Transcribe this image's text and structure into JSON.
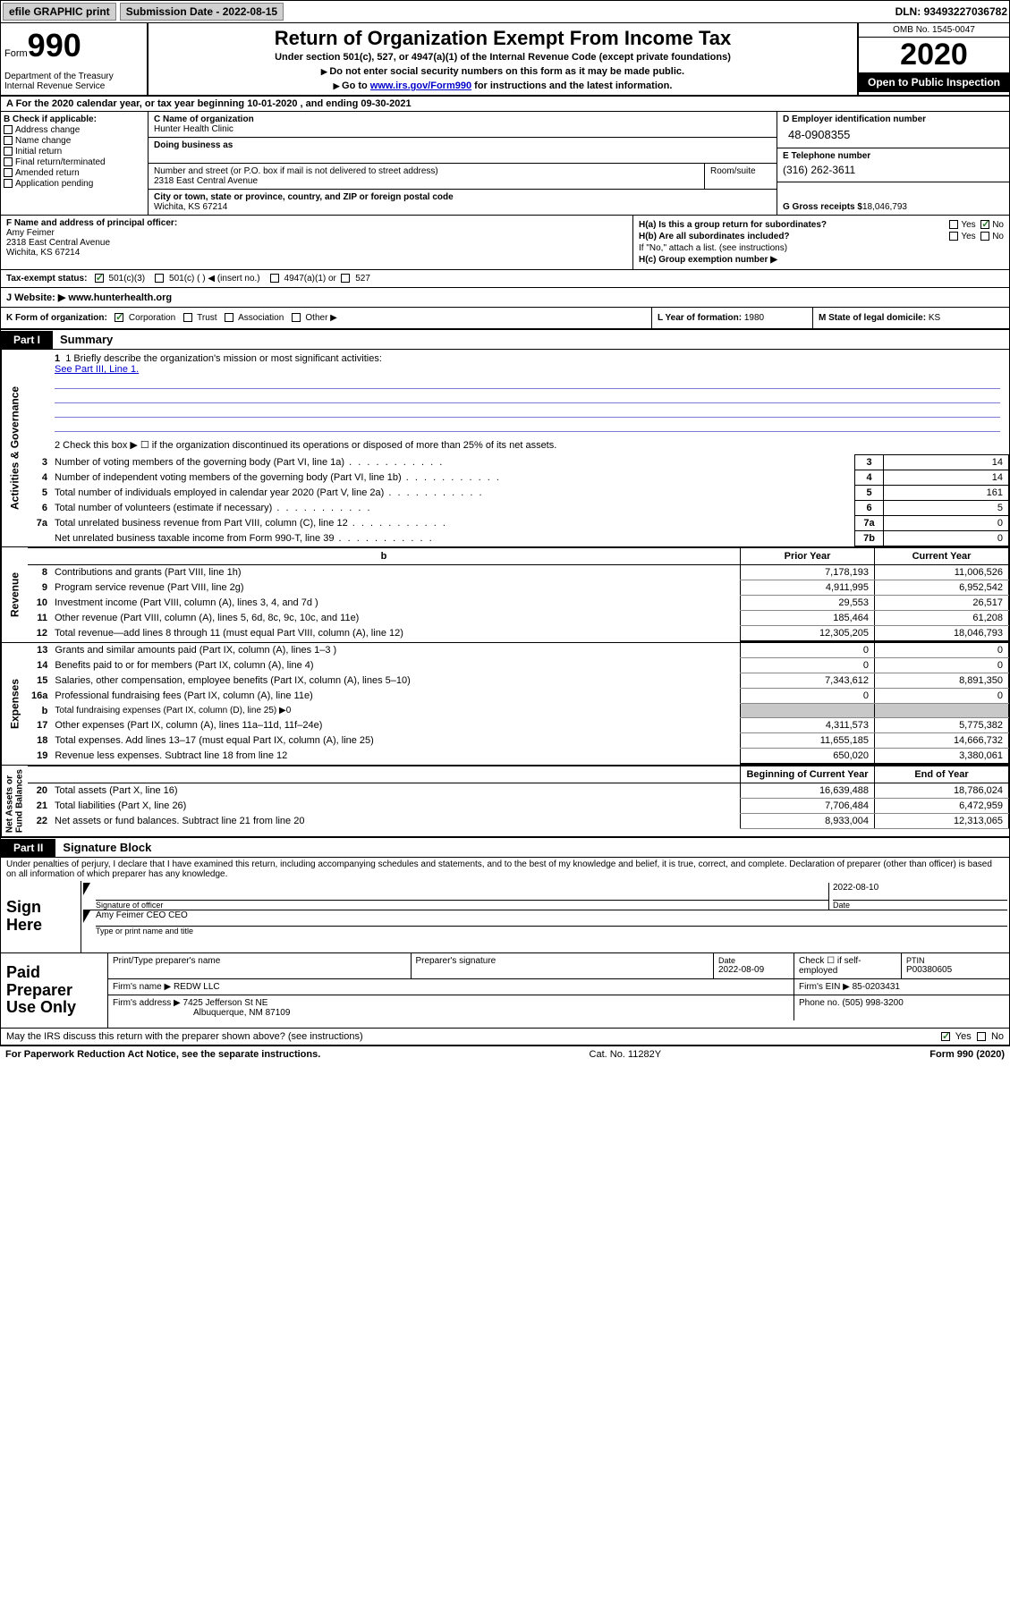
{
  "topbar": {
    "efile": "efile GRAPHIC print",
    "subdate_label": "Submission Date - ",
    "subdate": "2022-08-15",
    "dln_label": "DLN: ",
    "dln": "93493227036782"
  },
  "header": {
    "form_word": "Form",
    "form_num": "990",
    "dept": "Department of the Treasury\nInternal Revenue Service",
    "title": "Return of Organization Exempt From Income Tax",
    "sub": "Under section 501(c), 527, or 4947(a)(1) of the Internal Revenue Code (except private foundations)",
    "note1": "Do not enter social security numbers on this form as it may be made public.",
    "note2_pre": "Go to ",
    "note2_link": "www.irs.gov/Form990",
    "note2_post": " for instructions and the latest information.",
    "omb": "OMB No. 1545-0047",
    "year": "2020",
    "open": "Open to Public Inspection"
  },
  "rowA": "A For the 2020 calendar year, or tax year beginning 10-01-2020   , and ending 09-30-2021",
  "colB": {
    "hdr": "B Check if applicable:",
    "items": [
      "Address change",
      "Name change",
      "Initial return",
      "Final return/terminated",
      "Amended return",
      "Application pending"
    ]
  },
  "colC": {
    "name_lbl": "C Name of organization",
    "name": "Hunter Health Clinic",
    "dba_lbl": "Doing business as",
    "addr_lbl": "Number and street (or P.O. box if mail is not delivered to street address)",
    "addr": "2318 East Central Avenue",
    "room_lbl": "Room/suite",
    "city_lbl": "City or town, state or province, country, and ZIP or foreign postal code",
    "city": "Wichita, KS  67214"
  },
  "colD": {
    "ein_lbl": "D Employer identification number",
    "ein": "48-0908355",
    "tel_lbl": "E Telephone number",
    "tel": "(316) 262-3611",
    "gross_lbl": "G Gross receipts $ ",
    "gross": "18,046,793"
  },
  "colF": {
    "lbl": "F Name and address of principal officer:",
    "name": "Amy Feimer",
    "addr1": "2318 East Central Avenue",
    "addr2": "Wichita, KS  67214"
  },
  "colH": {
    "a": "H(a)  Is this a group return for subordinates?",
    "b": "H(b)  Are all subordinates included?",
    "b_note": "If \"No,\" attach a list. (see instructions)",
    "c": "H(c)  Group exemption number ▶",
    "yes": "Yes",
    "no": "No"
  },
  "rowI": {
    "lbl": "Tax-exempt status:",
    "o1": "501(c)(3)",
    "o2": "501(c) (  ) ◀ (insert no.)",
    "o3": "4947(a)(1) or",
    "o4": "527"
  },
  "rowJ": {
    "lbl": "J  Website: ▶ ",
    "val": "www.hunterhealth.org"
  },
  "rowK": {
    "lbl": "K Form of organization:",
    "corp": "Corporation",
    "trust": "Trust",
    "assoc": "Association",
    "other": "Other ▶"
  },
  "rowL": {
    "lbl": "L Year of formation: ",
    "val": "1980"
  },
  "rowM": {
    "lbl": "M State of legal domicile: ",
    "val": "KS"
  },
  "parts": {
    "p1": "Part I",
    "p1t": "Summary",
    "p2": "Part II",
    "p2t": "Signature Block"
  },
  "vsides": {
    "gov": "Activities & Governance",
    "rev": "Revenue",
    "exp": "Expenses",
    "net": "Net Assets or\nFund Balances"
  },
  "summary": {
    "q1": "1   Briefly describe the organization's mission or most significant activities:",
    "q1_link": "See Part III, Line 1.",
    "q2": "2   Check this box ▶ ☐  if the organization discontinued its operations or disposed of more than 25% of its net assets.",
    "rows_gov": [
      {
        "n": "3",
        "d": "Number of voting members of the governing body (Part VI, line 1a)",
        "box": "3",
        "v": "14"
      },
      {
        "n": "4",
        "d": "Number of independent voting members of the governing body (Part VI, line 1b)",
        "box": "4",
        "v": "14"
      },
      {
        "n": "5",
        "d": "Total number of individuals employed in calendar year 2020 (Part V, line 2a)",
        "box": "5",
        "v": "161"
      },
      {
        "n": "6",
        "d": "Total number of volunteers (estimate if necessary)",
        "box": "6",
        "v": "5"
      },
      {
        "n": "7a",
        "d": "Total unrelated business revenue from Part VIII, column (C), line 12",
        "box": "7a",
        "v": "0"
      },
      {
        "n": "",
        "d": "Net unrelated business taxable income from Form 990-T, line 39",
        "box": "7b",
        "v": "0"
      }
    ],
    "col_hdr_b": "b",
    "hdr_prior": "Prior Year",
    "hdr_curr": "Current Year",
    "rows_rev": [
      {
        "n": "8",
        "d": "Contributions and grants (Part VIII, line 1h)",
        "p": "7,178,193",
        "c": "11,006,526"
      },
      {
        "n": "9",
        "d": "Program service revenue (Part VIII, line 2g)",
        "p": "4,911,995",
        "c": "6,952,542"
      },
      {
        "n": "10",
        "d": "Investment income (Part VIII, column (A), lines 3, 4, and 7d )",
        "p": "29,553",
        "c": "26,517"
      },
      {
        "n": "11",
        "d": "Other revenue (Part VIII, column (A), lines 5, 6d, 8c, 9c, 10c, and 11e)",
        "p": "185,464",
        "c": "61,208"
      },
      {
        "n": "12",
        "d": "Total revenue—add lines 8 through 11 (must equal Part VIII, column (A), line 12)",
        "p": "12,305,205",
        "c": "18,046,793"
      }
    ],
    "rows_exp": [
      {
        "n": "13",
        "d": "Grants and similar amounts paid (Part IX, column (A), lines 1–3 )",
        "p": "0",
        "c": "0"
      },
      {
        "n": "14",
        "d": "Benefits paid to or for members (Part IX, column (A), line 4)",
        "p": "0",
        "c": "0"
      },
      {
        "n": "15",
        "d": "Salaries, other compensation, employee benefits (Part IX, column (A), lines 5–10)",
        "p": "7,343,612",
        "c": "8,891,350"
      },
      {
        "n": "16a",
        "d": "Professional fundraising fees (Part IX, column (A), line 11e)",
        "p": "0",
        "c": "0"
      },
      {
        "n": "b",
        "d": "Total fundraising expenses (Part IX, column (D), line 25) ▶0",
        "p": "grey",
        "c": "grey"
      },
      {
        "n": "17",
        "d": "Other expenses (Part IX, column (A), lines 11a–11d, 11f–24e)",
        "p": "4,311,573",
        "c": "5,775,382"
      },
      {
        "n": "18",
        "d": "Total expenses. Add lines 13–17 (must equal Part IX, column (A), line 25)",
        "p": "11,655,185",
        "c": "14,666,732"
      },
      {
        "n": "19",
        "d": "Revenue less expenses. Subtract line 18 from line 12",
        "p": "650,020",
        "c": "3,380,061"
      }
    ],
    "hdr_beg": "Beginning of Current Year",
    "hdr_end": "End of Year",
    "rows_net": [
      {
        "n": "20",
        "d": "Total assets (Part X, line 16)",
        "p": "16,639,488",
        "c": "18,786,024"
      },
      {
        "n": "21",
        "d": "Total liabilities (Part X, line 26)",
        "p": "7,706,484",
        "c": "6,472,959"
      },
      {
        "n": "22",
        "d": "Net assets or fund balances. Subtract line 21 from line 20",
        "p": "8,933,004",
        "c": "12,313,065"
      }
    ]
  },
  "penalty": "Under penalties of perjury, I declare that I have examined this return, including accompanying schedules and statements, and to the best of my knowledge and belief, it is true, correct, and complete. Declaration of preparer (other than officer) is based on all information of which preparer has any knowledge.",
  "sign": {
    "left": "Sign Here",
    "sig_lbl": "Signature of officer",
    "date": "2022-08-10",
    "date_lbl": "Date",
    "name": "Amy Feimer CEO CEO",
    "name_lbl": "Type or print name and title"
  },
  "prep": {
    "left": "Paid Preparer Use Only",
    "r1": {
      "c1": "Print/Type preparer's name",
      "c2": "Preparer's signature",
      "c3_lbl": "Date",
      "c3": "2022-08-09",
      "c4": "Check ☐ if self-employed",
      "c5_lbl": "PTIN",
      "c5": "P00380605"
    },
    "r2": {
      "c1_lbl": "Firm's name    ▶ ",
      "c1": "REDW LLC",
      "c2_lbl": "Firm's EIN ▶ ",
      "c2": "85-0203431"
    },
    "r3": {
      "c1_lbl": "Firm's address ▶ ",
      "c1a": "7425 Jefferson St NE",
      "c1b": "Albuquerque, NM  87109",
      "c2_lbl": "Phone no. ",
      "c2": "(505) 998-3200"
    }
  },
  "discuss": {
    "q": "May the IRS discuss this return with the preparer shown above? (see instructions)",
    "yes": "Yes",
    "no": "No"
  },
  "footer": {
    "l": "For Paperwork Reduction Act Notice, see the separate instructions.",
    "m": "Cat. No. 11282Y",
    "r": "Form 990 (2020)"
  }
}
